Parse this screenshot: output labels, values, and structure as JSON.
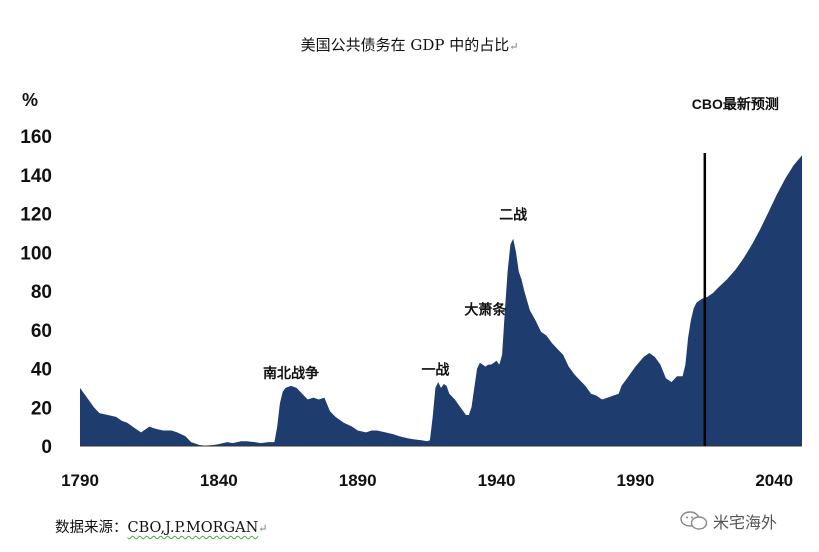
{
  "title": "美国公共债务在 GDP 中的占比",
  "paragraph_mark": "↵",
  "chart_data": {
    "type": "area",
    "title": "美国公共债务在 GDP 中的占比",
    "ylabel": "%",
    "xlabel": "",
    "ylim": [
      0,
      160
    ],
    "xlim": [
      1790,
      2050
    ],
    "y_ticks": [
      "0",
      "20",
      "40",
      "60",
      "80",
      "100",
      "120",
      "140",
      "160"
    ],
    "x_ticks": [
      "1790",
      "1840",
      "1890",
      "1940",
      "1990",
      "2040"
    ],
    "grid": false,
    "legend": "none",
    "series": [
      {
        "color": "#1f3c6e",
        "points": [
          [
            1790,
            30
          ],
          [
            1792,
            26
          ],
          [
            1795,
            20
          ],
          [
            1797,
            17
          ],
          [
            1800,
            16
          ],
          [
            1803,
            15
          ],
          [
            1805,
            13
          ],
          [
            1807,
            12
          ],
          [
            1810,
            9
          ],
          [
            1812,
            7
          ],
          [
            1815,
            10
          ],
          [
            1817,
            9
          ],
          [
            1820,
            8
          ],
          [
            1823,
            8
          ],
          [
            1825,
            7
          ],
          [
            1828,
            5
          ],
          [
            1830,
            2
          ],
          [
            1833,
            0.5
          ],
          [
            1835,
            0.2
          ],
          [
            1838,
            0.5
          ],
          [
            1840,
            1
          ],
          [
            1843,
            2
          ],
          [
            1845,
            1.5
          ],
          [
            1848,
            2.5
          ],
          [
            1850,
            2.5
          ],
          [
            1853,
            2
          ],
          [
            1855,
            1.5
          ],
          [
            1858,
            2
          ],
          [
            1860,
            2
          ],
          [
            1861,
            10
          ],
          [
            1862,
            22
          ],
          [
            1863,
            28
          ],
          [
            1864,
            30
          ],
          [
            1866,
            31
          ],
          [
            1868,
            30
          ],
          [
            1870,
            27
          ],
          [
            1872,
            24
          ],
          [
            1874,
            25
          ],
          [
            1876,
            24
          ],
          [
            1878,
            25
          ],
          [
            1880,
            18
          ],
          [
            1882,
            15
          ],
          [
            1885,
            12
          ],
          [
            1888,
            10
          ],
          [
            1890,
            8
          ],
          [
            1893,
            7
          ],
          [
            1895,
            8
          ],
          [
            1897,
            8
          ],
          [
            1900,
            7
          ],
          [
            1903,
            6
          ],
          [
            1905,
            5
          ],
          [
            1908,
            4
          ],
          [
            1910,
            3.5
          ],
          [
            1913,
            3
          ],
          [
            1915,
            2.5
          ],
          [
            1916,
            3
          ],
          [
            1917,
            15
          ],
          [
            1918,
            30
          ],
          [
            1919,
            33
          ],
          [
            1920,
            30
          ],
          [
            1921,
            32
          ],
          [
            1922,
            31
          ],
          [
            1923,
            27
          ],
          [
            1925,
            24
          ],
          [
            1927,
            20
          ],
          [
            1929,
            16
          ],
          [
            1930,
            16
          ],
          [
            1931,
            20
          ],
          [
            1932,
            30
          ],
          [
            1933,
            40
          ],
          [
            1934,
            43
          ],
          [
            1935,
            42
          ],
          [
            1936,
            41
          ],
          [
            1937,
            42
          ],
          [
            1938,
            42
          ],
          [
            1939,
            43
          ],
          [
            1940,
            44
          ],
          [
            1941,
            42
          ],
          [
            1942,
            47
          ],
          [
            1943,
            70
          ],
          [
            1944,
            90
          ],
          [
            1945,
            104
          ],
          [
            1946,
            107
          ],
          [
            1947,
            100
          ],
          [
            1948,
            90
          ],
          [
            1949,
            86
          ],
          [
            1950,
            80
          ],
          [
            1952,
            70
          ],
          [
            1954,
            65
          ],
          [
            1956,
            59
          ],
          [
            1958,
            57
          ],
          [
            1960,
            53
          ],
          [
            1962,
            50
          ],
          [
            1964,
            47
          ],
          [
            1966,
            41
          ],
          [
            1968,
            37
          ],
          [
            1970,
            34
          ],
          [
            1972,
            31
          ],
          [
            1974,
            27
          ],
          [
            1976,
            26
          ],
          [
            1978,
            24
          ],
          [
            1980,
            25
          ],
          [
            1982,
            26
          ],
          [
            1984,
            27
          ],
          [
            1985,
            31
          ],
          [
            1987,
            35
          ],
          [
            1990,
            41
          ],
          [
            1993,
            46
          ],
          [
            1995,
            48
          ],
          [
            1997,
            46
          ],
          [
            1999,
            42
          ],
          [
            2001,
            35
          ],
          [
            2003,
            33
          ],
          [
            2005,
            36
          ],
          [
            2007,
            36
          ],
          [
            2008,
            42
          ],
          [
            2009,
            56
          ],
          [
            2010,
            65
          ],
          [
            2011,
            71
          ],
          [
            2012,
            74
          ],
          [
            2014,
            76
          ],
          [
            2016,
            77
          ],
          [
            2018,
            79
          ],
          [
            2020,
            82
          ],
          [
            2023,
            86
          ],
          [
            2026,
            91
          ],
          [
            2029,
            97
          ],
          [
            2032,
            104
          ],
          [
            2035,
            112
          ],
          [
            2038,
            121
          ],
          [
            2041,
            130
          ],
          [
            2044,
            138
          ],
          [
            2047,
            145
          ],
          [
            2050,
            150
          ]
        ]
      }
    ],
    "annotations": [
      {
        "text": "南北战争",
        "x": 1866,
        "y": 35
      },
      {
        "text": "一战",
        "x": 1918,
        "y": 37
      },
      {
        "text": "大萧条",
        "x": 1936,
        "y": 68
      },
      {
        "text": "二战",
        "x": 1946,
        "y": 117
      },
      {
        "text": "CBO最新预测",
        "x": 2026,
        "y": 174
      }
    ],
    "projection_start_year": 2015
  },
  "source": {
    "label": "数据来源：",
    "value": "CBO,J.P.MORGAN"
  },
  "watermark": {
    "icon": "wechat-icon",
    "text": "米宅海外"
  }
}
